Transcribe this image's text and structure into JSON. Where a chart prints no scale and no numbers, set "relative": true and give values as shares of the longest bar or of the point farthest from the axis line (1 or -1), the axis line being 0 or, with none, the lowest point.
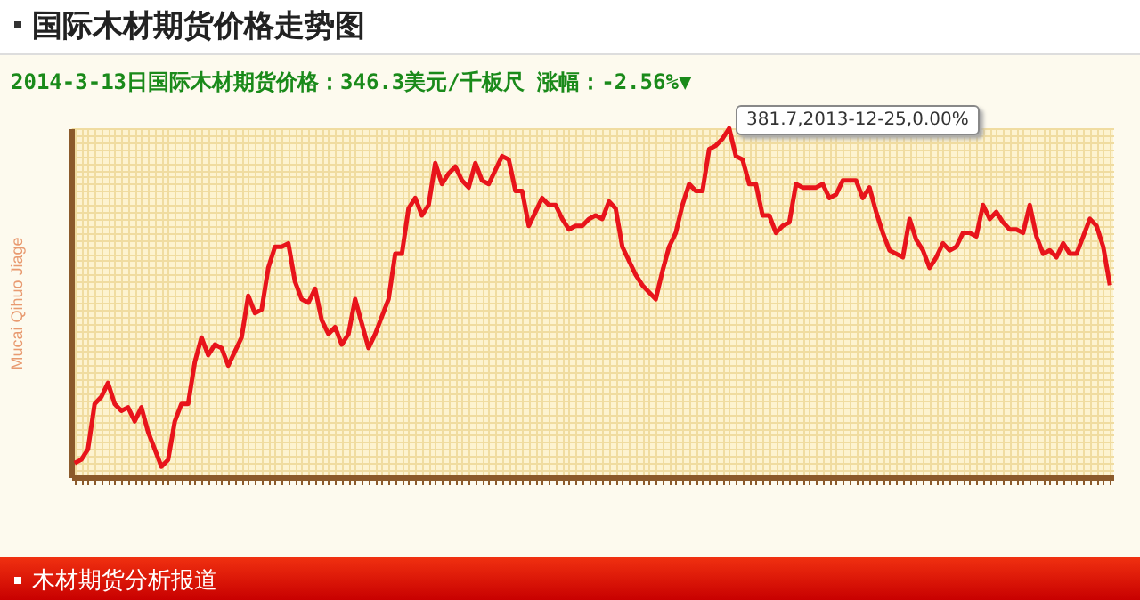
{
  "chart_data": {
    "type": "line",
    "title": "国际木材期货价格走势图",
    "subtitle": "2014-3-13日国际木材期货价格：346.3美元/千板尺  涨幅：-2.56%▼",
    "ylabel": "Mucai Qihuo Jiage",
    "relative": true,
    "grid": true,
    "marker": "none",
    "line_style": "solid",
    "annotations": [
      "381.7,2013-12-25,0.00%",
      "木材期货分析报道"
    ],
    "categories": [
      null,
      null,
      null,
      null,
      null,
      null,
      null,
      null,
      null,
      null,
      null,
      null,
      null,
      null,
      null,
      null,
      null,
      null,
      null,
      null,
      null,
      null,
      null,
      null,
      null,
      null,
      null,
      null,
      null,
      null,
      null,
      null,
      null,
      null,
      null,
      null,
      null,
      null,
      null,
      null,
      null,
      null,
      null,
      null,
      null,
      null,
      null,
      null,
      null,
      null,
      null,
      null,
      null,
      null,
      null,
      null,
      null,
      null,
      null,
      null,
      null,
      null,
      null,
      null,
      null,
      null,
      null,
      null,
      null,
      null,
      null,
      null,
      null,
      null,
      null,
      null,
      null,
      null,
      null,
      null,
      null,
      null,
      null,
      null,
      null,
      null,
      null,
      null,
      null,
      null,
      null,
      null,
      null,
      null,
      null,
      null,
      null,
      null,
      null,
      null,
      null,
      null,
      null,
      null,
      null,
      null,
      null,
      null,
      null,
      null,
      null,
      null,
      null,
      null,
      null,
      null,
      null,
      null,
      null,
      null,
      null,
      null,
      null,
      null,
      null,
      null,
      null,
      null,
      null,
      null,
      null,
      null,
      null,
      null,
      null,
      null,
      null,
      null,
      null,
      null,
      null,
      null,
      null,
      null,
      null,
      null,
      null,
      null,
      null,
      null,
      null,
      null,
      null,
      null,
      null,
      null
    ],
    "series": [
      {
        "color": "#e8141b",
        "values": [
          0.04,
          0.05,
          0.08,
          0.21,
          0.23,
          0.27,
          0.21,
          0.19,
          0.2,
          0.16,
          0.2,
          0.13,
          0.08,
          0.03,
          0.05,
          0.16,
          0.21,
          0.21,
          0.33,
          0.4,
          0.35,
          0.38,
          0.37,
          0.32,
          0.36,
          0.4,
          0.52,
          0.47,
          0.48,
          0.6,
          0.66,
          0.66,
          0.67,
          0.56,
          0.51,
          0.5,
          0.54,
          0.45,
          0.41,
          0.43,
          0.38,
          0.41,
          0.51,
          0.44,
          0.37,
          0.41,
          0.46,
          0.51,
          0.64,
          0.64,
          0.77,
          0.8,
          0.75,
          0.78,
          0.9,
          0.84,
          0.87,
          0.89,
          0.85,
          0.83,
          0.9,
          0.85,
          0.84,
          0.88,
          0.92,
          0.91,
          0.82,
          0.82,
          0.72,
          0.76,
          0.8,
          0.78,
          0.78,
          0.74,
          0.71,
          0.72,
          0.72,
          0.74,
          0.75,
          0.74,
          0.79,
          0.77,
          0.66,
          0.62,
          0.58,
          0.55,
          0.53,
          0.51,
          0.59,
          0.66,
          0.7,
          0.78,
          0.84,
          0.82,
          0.82,
          0.94,
          0.95,
          0.97,
          1,
          0.92,
          0.91,
          0.84,
          0.84,
          0.75,
          0.75,
          0.7,
          0.72,
          0.73,
          0.84,
          0.83,
          0.83,
          0.83,
          0.84,
          0.8,
          0.81,
          0.85,
          0.85,
          0.85,
          0.8,
          0.83,
          0.76,
          0.7,
          0.65,
          0.64,
          0.63,
          0.74,
          0.68,
          0.65,
          0.6,
          0.63,
          0.67,
          0.65,
          0.66,
          0.7,
          0.7,
          0.69,
          0.78,
          0.74,
          0.76,
          0.73,
          0.71,
          0.71,
          0.7,
          0.78,
          0.69,
          0.64,
          0.65,
          0.63,
          0.67,
          0.64,
          0.64,
          0.69,
          0.74,
          0.72,
          0.66,
          0.55
        ]
      }
    ]
  }
}
